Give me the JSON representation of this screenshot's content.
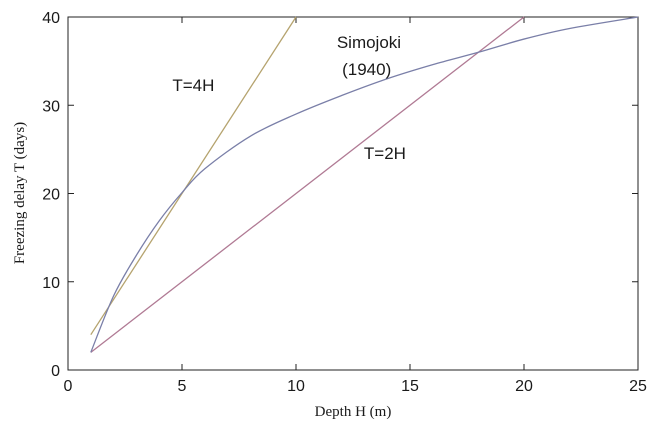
{
  "chart_data": {
    "type": "line",
    "xlabel": "Depth H (m)",
    "ylabel": "Freezing delay T (days)",
    "xlim": [
      0,
      25
    ],
    "ylim": [
      0,
      40
    ],
    "x_ticks": [
      0,
      5,
      10,
      15,
      20,
      25
    ],
    "y_ticks": [
      0,
      10,
      20,
      30,
      40
    ],
    "grid": false,
    "series": [
      {
        "name": "T=4H",
        "color": "#b5a36e",
        "x": [
          1,
          10
        ],
        "y": [
          4,
          40
        ]
      },
      {
        "name": "T=2H",
        "color": "#b07a94",
        "x": [
          1,
          20
        ],
        "y": [
          2,
          40
        ]
      },
      {
        "name": "Simojoki",
        "color": "#7a7fa8",
        "x": [
          1,
          2,
          3,
          4,
          5,
          6,
          8,
          10,
          12,
          14,
          16,
          18,
          20,
          22,
          25
        ],
        "y": [
          2,
          8.4,
          13,
          16.9,
          20.1,
          22.8,
          26.5,
          29,
          31.1,
          33,
          34.6,
          36,
          37.5,
          38.7,
          40
        ]
      }
    ],
    "annotations": [
      {
        "text": "T=4H",
        "x": 5.5,
        "y": 31.6
      },
      {
        "text": "Simojoki",
        "x": 13.2,
        "y": 36.5
      },
      {
        "text": "(1940)",
        "x": 13.1,
        "y": 33.4
      },
      {
        "text": "T=2H",
        "x": 13.9,
        "y": 23.9
      }
    ]
  }
}
